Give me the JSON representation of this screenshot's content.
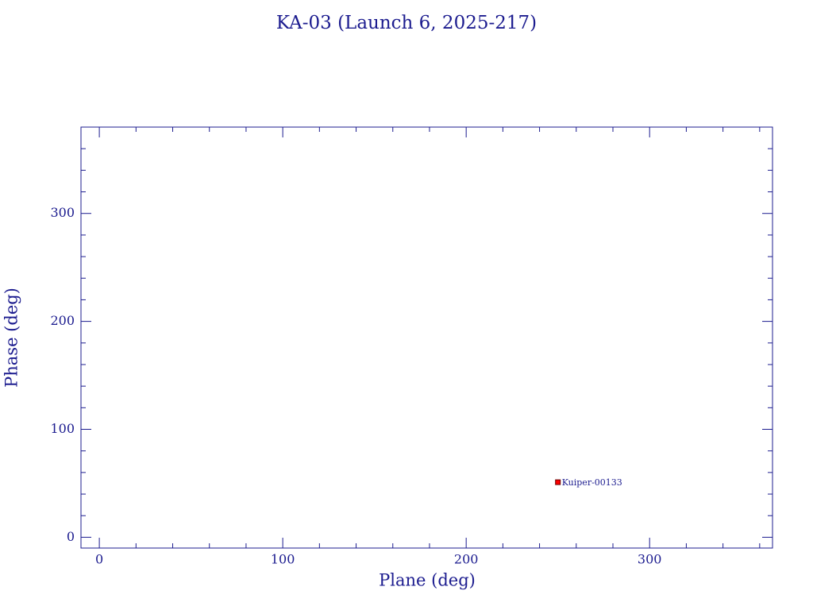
{
  "chart_data": {
    "type": "scatter",
    "title": "KA-03 (Launch 6, 2025-217)",
    "x_label": "Plane (deg)",
    "y_label": "Phase (deg)",
    "x": [
      250
    ],
    "values": [
      51
    ],
    "labels": [
      "Kuiper-00133"
    ],
    "color": "#ff0000",
    "xlim": [
      -10,
      367
    ],
    "ylim": [
      -10,
      380
    ],
    "xticks": [
      0,
      100,
      200,
      300
    ],
    "yticks": [
      0,
      100,
      200,
      300
    ],
    "xminorticks": [
      20,
      40,
      60,
      80,
      120,
      140,
      160,
      180,
      220,
      240,
      260,
      280,
      320,
      340,
      360
    ],
    "yminorticks": [
      20,
      40,
      60,
      80,
      120,
      140,
      160,
      180,
      220,
      240,
      260,
      280,
      320,
      340,
      360
    ]
  }
}
